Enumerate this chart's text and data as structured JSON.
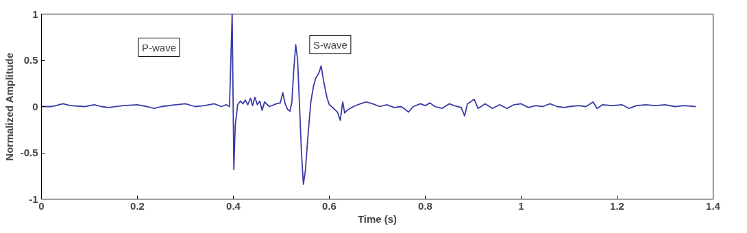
{
  "chart_data": {
    "type": "line",
    "xlabel": "Time (s)",
    "ylabel": "Normalized Amplitude",
    "xlim": [
      0,
      1.4
    ],
    "ylim": [
      -1,
      1
    ],
    "xticks": [
      0,
      0.2,
      0.4,
      0.6,
      0.8,
      1,
      1.2,
      1.4
    ],
    "yticks": [
      -1,
      -0.5,
      0,
      0.5,
      1
    ],
    "grid": false,
    "annotations": [
      "P-wave",
      "S-wave"
    ],
    "series": [
      {
        "color": "#3a3aa8",
        "x": [
          0,
          0.02,
          0.03,
          0.045,
          0.06,
          0.09,
          0.11,
          0.125,
          0.14,
          0.17,
          0.2,
          0.22,
          0.235,
          0.25,
          0.28,
          0.3,
          0.32,
          0.34,
          0.36,
          0.375,
          0.385,
          0.392,
          0.3975,
          0.399,
          0.401,
          0.404,
          0.409,
          0.415,
          0.42,
          0.425,
          0.43,
          0.436,
          0.44,
          0.445,
          0.45,
          0.455,
          0.46,
          0.465,
          0.475,
          0.49,
          0.498,
          0.503,
          0.508,
          0.513,
          0.518,
          0.522,
          0.526,
          0.53,
          0.534,
          0.538,
          0.542,
          0.546,
          0.55,
          0.555,
          0.5615,
          0.567,
          0.572,
          0.578,
          0.583,
          0.588,
          0.595,
          0.6,
          0.605,
          0.611,
          0.617,
          0.623,
          0.626,
          0.628,
          0.632,
          0.637,
          0.65,
          0.665,
          0.677,
          0.69,
          0.705,
          0.72,
          0.735,
          0.75,
          0.758,
          0.765,
          0.775,
          0.79,
          0.8,
          0.81,
          0.82,
          0.835,
          0.85,
          0.86,
          0.875,
          0.882,
          0.888,
          0.897,
          0.902,
          0.91,
          0.925,
          0.94,
          0.955,
          0.97,
          0.985,
          1.0,
          1.015,
          1.03,
          1.045,
          1.06,
          1.075,
          1.09,
          1.1,
          1.12,
          1.135,
          1.15,
          1.158,
          1.17,
          1.19,
          1.21,
          1.225,
          1.24,
          1.26,
          1.28,
          1.3,
          1.32,
          1.34,
          1.364
        ],
        "values": [
          0,
          0,
          0.01,
          0.03,
          0.01,
          0,
          0.02,
          0,
          -0.01,
          0.01,
          0.02,
          0,
          -0.02,
          0,
          0.02,
          0.03,
          0,
          0.01,
          0.03,
          0,
          0.02,
          0,
          1.0,
          0.3,
          -0.68,
          -0.2,
          0.02,
          0.06,
          0.03,
          0.07,
          0.02,
          0.09,
          0.01,
          0.1,
          0.02,
          0.06,
          -0.04,
          0.05,
          0,
          0.03,
          0.04,
          0.15,
          0.03,
          -0.03,
          -0.05,
          0.05,
          0.4,
          0.67,
          0.5,
          0,
          -0.5,
          -0.84,
          -0.7,
          -0.35,
          0.05,
          0.22,
          0.31,
          0.36,
          0.44,
          0.28,
          0.1,
          0.02,
          0,
          -0.03,
          -0.06,
          -0.15,
          -0.02,
          0.05,
          -0.07,
          -0.04,
          0,
          0.03,
          0.05,
          0.03,
          0,
          0.02,
          -0.01,
          0,
          -0.03,
          -0.06,
          0,
          0.03,
          0.01,
          0.04,
          0,
          -0.02,
          0.03,
          0.01,
          -0.01,
          -0.1,
          0.03,
          0.06,
          0.08,
          -0.02,
          0.03,
          -0.02,
          0.02,
          -0.02,
          0.02,
          0.03,
          -0.01,
          0.01,
          0,
          0.03,
          0,
          -0.01,
          0,
          0.01,
          0,
          0.05,
          -0.02,
          0.02,
          0.01,
          0.02,
          -0.02,
          0.01,
          0.02,
          0.01,
          0.02,
          0,
          0.01,
          0
        ]
      }
    ]
  }
}
